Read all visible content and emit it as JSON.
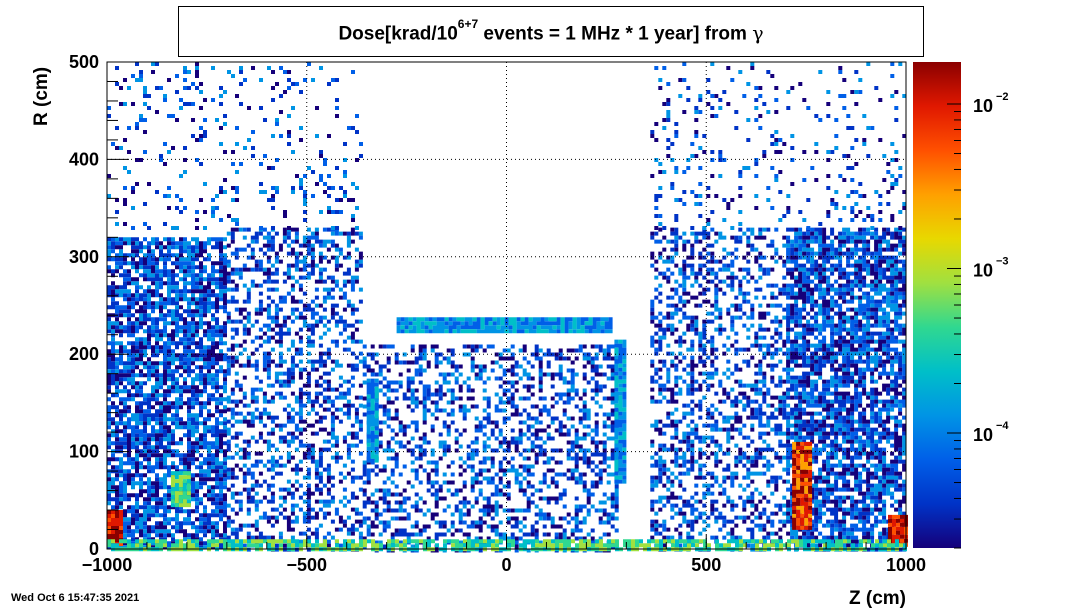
{
  "chart_data": {
    "type": "heatmap",
    "title": {
      "prefix": "Dose[krad/10",
      "superscript": "6+7",
      "suffix": " events = 1 MHz * 1 year] from ",
      "symbol": "γ"
    },
    "xlabel": "Z (cm)",
    "ylabel": "R (cm)",
    "xlim": [
      -1000,
      1000
    ],
    "ylim": [
      0,
      500
    ],
    "x_ticks": [
      {
        "value": -1000,
        "label": "−1000"
      },
      {
        "value": -500,
        "label": "−500"
      },
      {
        "value": 0,
        "label": "0"
      },
      {
        "value": 500,
        "label": "500"
      },
      {
        "value": 1000,
        "label": "1000"
      }
    ],
    "y_ticks": [
      {
        "value": 0,
        "label": "0"
      },
      {
        "value": 100,
        "label": "100"
      },
      {
        "value": 200,
        "label": "200"
      },
      {
        "value": 300,
        "label": "300"
      },
      {
        "value": 400,
        "label": "400"
      },
      {
        "value": 500,
        "label": "500"
      }
    ],
    "grid": true,
    "colorbar": {
      "scale": "log",
      "range": [
        2e-05,
        0.018
      ],
      "labels": [
        {
          "value": 0.01,
          "base": "10",
          "exp": "−2"
        },
        {
          "value": 0.001,
          "base": "10",
          "exp": "−3"
        },
        {
          "value": 0.0001,
          "base": "10",
          "exp": "−4"
        }
      ],
      "palette": [
        "#15007a",
        "#0033c7",
        "#005fe8",
        "#0094e5",
        "#00bfc8",
        "#30d890",
        "#a0e040",
        "#e8d800",
        "#ffa000",
        "#ff5000",
        "#e01800",
        "#8b0000"
      ]
    },
    "regions": [
      {
        "z": [
          -1000,
          -700
        ],
        "r": [
          0,
          320
        ],
        "level": "low",
        "density": "high"
      },
      {
        "z": [
          -700,
          -360
        ],
        "r": [
          0,
          330
        ],
        "level": "low",
        "density": "medium"
      },
      {
        "z": [
          -1000,
          -360
        ],
        "r": [
          330,
          500
        ],
        "level": "low",
        "density": "sparse"
      },
      {
        "z": [
          -360,
          280
        ],
        "r": [
          0,
          210
        ],
        "level": "low",
        "density": "medium"
      },
      {
        "z": [
          360,
          700
        ],
        "r": [
          0,
          330
        ],
        "level": "low",
        "density": "medium"
      },
      {
        "z": [
          700,
          1000
        ],
        "r": [
          0,
          330
        ],
        "level": "low",
        "density": "high"
      },
      {
        "z": [
          360,
          1000
        ],
        "r": [
          330,
          500
        ],
        "level": "low",
        "density": "sparse"
      },
      {
        "z": [
          -275,
          265
        ],
        "r": [
          225,
          238
        ],
        "level": "medium-low",
        "density": "solid"
      },
      {
        "z": [
          -350,
          -325
        ],
        "r": [
          90,
          175
        ],
        "level": "medium-low",
        "density": "solid"
      },
      {
        "z": [
          270,
          295
        ],
        "r": [
          70,
          215
        ],
        "level": "medium-low",
        "density": "solid"
      },
      {
        "z": [
          -1000,
          -960
        ],
        "r": [
          5,
          40
        ],
        "level": "very-high",
        "density": "solid"
      },
      {
        "z": [
          955,
          1000
        ],
        "r": [
          5,
          35
        ],
        "level": "very-high",
        "density": "solid"
      },
      {
        "z": [
          715,
          760
        ],
        "r": [
          20,
          110
        ],
        "level": "high",
        "density": "solid"
      },
      {
        "z": [
          -840,
          -795
        ],
        "r": [
          45,
          80
        ],
        "level": "medium",
        "density": "solid"
      },
      {
        "z": [
          -1000,
          1000
        ],
        "r": [
          0,
          10
        ],
        "level": "medium",
        "density": "high"
      }
    ]
  },
  "timestamp": "Wed Oct  6 15:47:35 2021"
}
